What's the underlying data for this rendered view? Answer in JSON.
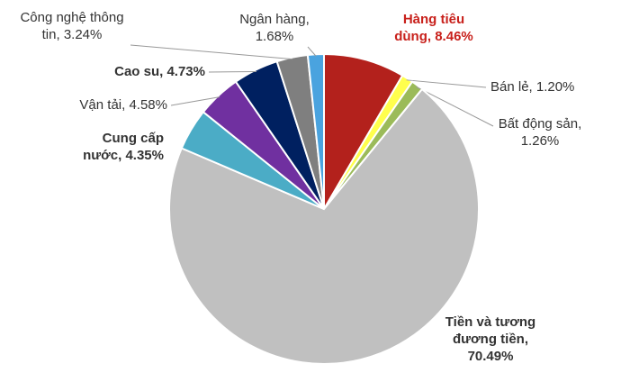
{
  "chart_data": {
    "type": "pie",
    "values": [
      8.46,
      1.2,
      1.26,
      70.49,
      4.35,
      4.58,
      4.73,
      3.24,
      1.68
    ],
    "value_labels": [
      "Hàng tiêu dùng, 8.46%",
      "Bán lẻ, 1.20%",
      "Bất động sản, 1.26%",
      "Tiền và tương đương tiền, 70.49%",
      "Cung cấp nước, 4.35%",
      "Vận tải, 4.58%",
      "Cao su, 4.73%",
      "Công nghệ thông tin, 3.24%",
      "Ngân hàng, 1.68%"
    ],
    "colors": [
      "#b3211c",
      "#ffff4d",
      "#9bbb59",
      "#c0c0c0",
      "#4bacc6",
      "#7030a0",
      "#002060",
      "#7f7f7f",
      "#4aa3df"
    ]
  }
}
